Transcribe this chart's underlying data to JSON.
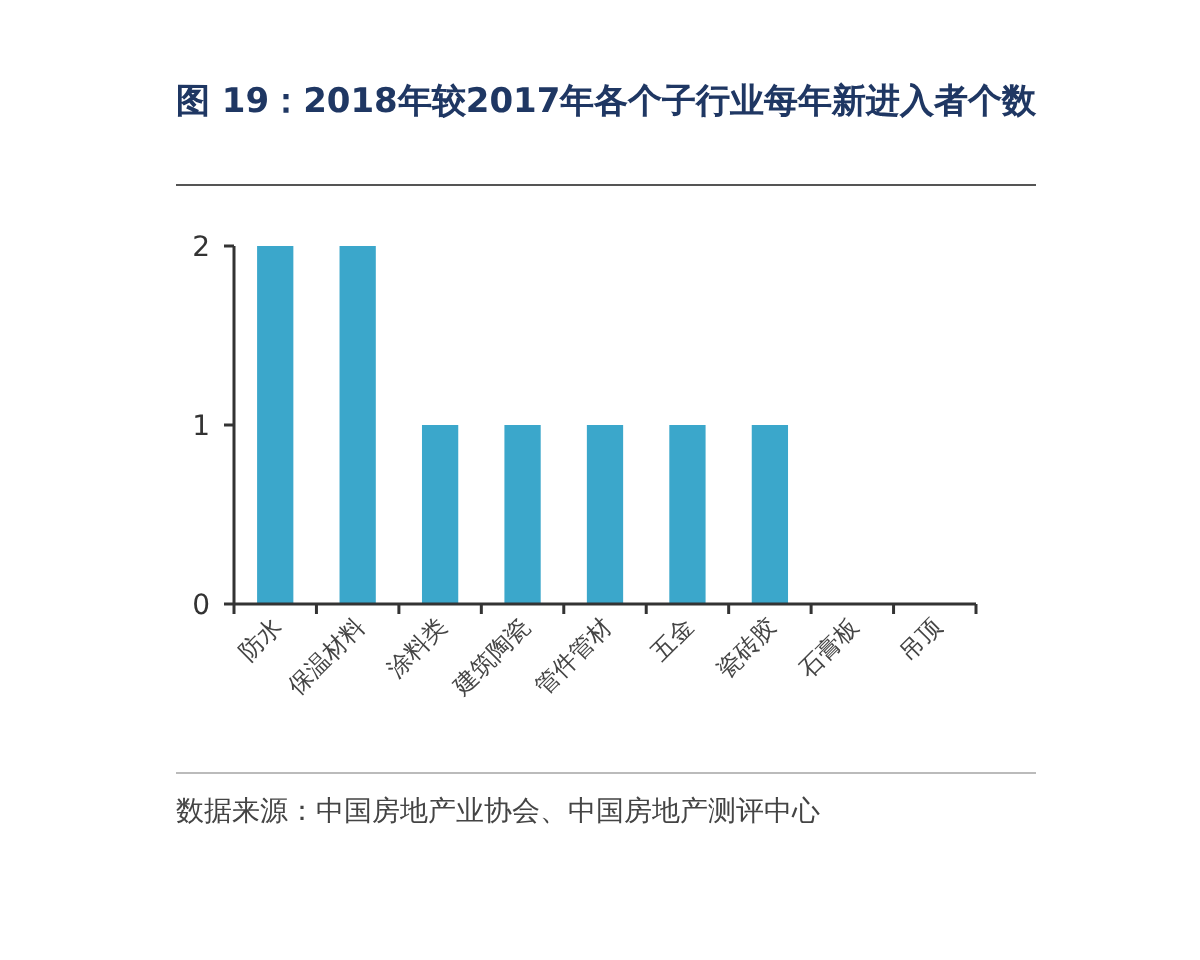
{
  "chart_data": {
    "type": "bar",
    "title": "图 19：2018年较2017年各个子行业每年新进入者个数",
    "categories": [
      "防水",
      "保温材料",
      "涂料类",
      "建筑陶瓷",
      "管件管材",
      "五金",
      "瓷砖胶",
      "石膏板",
      "吊顶"
    ],
    "values": [
      2,
      2,
      1,
      1,
      1,
      1,
      1,
      0,
      0
    ],
    "color": "#3ba7cb",
    "ylim": [
      0,
      2
    ],
    "yticks": [
      0,
      1,
      2
    ],
    "annotations": [
      "数据来源：中国房地产业协会、中国房地产测评中心"
    ]
  }
}
